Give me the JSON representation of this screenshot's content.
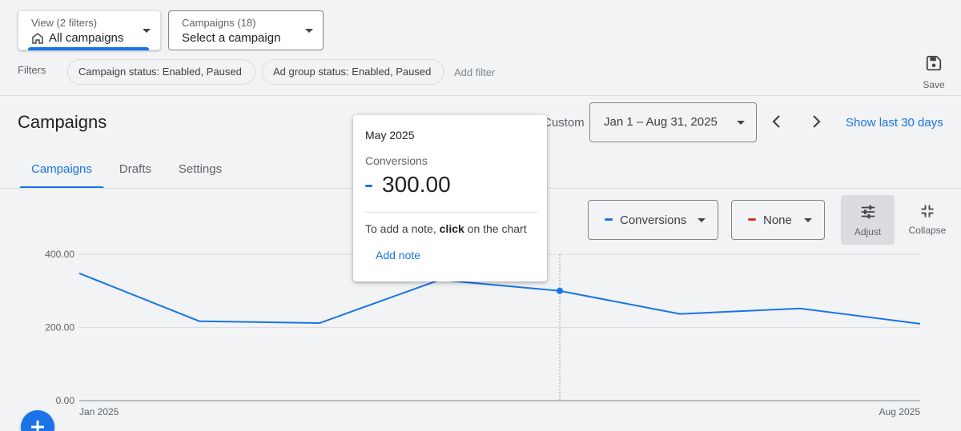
{
  "view_selector": {
    "small": "View (2 filters)",
    "main": "All campaigns",
    "icon": "home-icon"
  },
  "campaign_selector": {
    "small": "Campaigns (18)",
    "main": "Select a campaign"
  },
  "filters": {
    "label": "Filters",
    "chips": [
      "Campaign status: Enabled, Paused",
      "Ad group status: Enabled, Paused"
    ],
    "add_label": "Add filter"
  },
  "save_label": "Save",
  "page_title": "Campaigns",
  "tabs": [
    {
      "label": "Campaigns",
      "active": true
    },
    {
      "label": "Drafts",
      "active": false
    },
    {
      "label": "Settings",
      "active": false
    }
  ],
  "date": {
    "custom_label": "Custom",
    "range": "Jan 1 – Aug 31, 2025",
    "show_last": "Show last 30 days"
  },
  "metrics": [
    {
      "label": "Conversions",
      "color": "#1a73e8"
    },
    {
      "label": "None",
      "color": "#d93025"
    }
  ],
  "adjust_label": "Adjust",
  "collapse_label": "Collapse",
  "tooltip": {
    "month": "May 2025",
    "metric": "Conversions",
    "value": "300.00",
    "note_prefix": "To add a note, ",
    "note_bold": "click",
    "note_suffix": " on the chart",
    "add_note": "Add note"
  },
  "chart_data": {
    "type": "line",
    "x": [
      "Jan 2025",
      "Feb 2025",
      "Mar 2025",
      "Apr 2025",
      "May 2025",
      "Jun 2025",
      "Jul 2025",
      "Aug 2025"
    ],
    "series": [
      {
        "name": "Conversions",
        "values": [
          348,
          217,
          212,
          330,
          300,
          237,
          252,
          210
        ],
        "color": "#1a73e8"
      }
    ],
    "ylim": [
      0,
      400
    ],
    "yticks": [
      "0.00",
      "200.00",
      "400.00"
    ],
    "xtick_labels": [
      "Jan 2025",
      "Aug 2025"
    ],
    "highlight_index": 4,
    "grid": true
  }
}
